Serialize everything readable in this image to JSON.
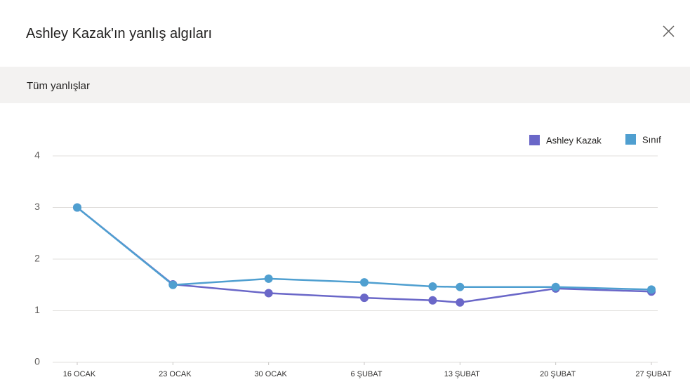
{
  "header": {
    "title": "Ashley Kazak'ın yanlış algıları"
  },
  "section": {
    "label": "Tüm yanlışlar"
  },
  "chart_data": {
    "type": "line",
    "x": [
      0,
      7,
      14,
      21,
      26,
      28,
      35,
      42
    ],
    "xlim": [
      0,
      42
    ],
    "xticks": [
      {
        "value": 0,
        "label": "16 OCAK"
      },
      {
        "value": 7,
        "label": "23 OCAK"
      },
      {
        "value": 14,
        "label": "30 OCAK"
      },
      {
        "value": 21,
        "label": "6 ŞUBAT"
      },
      {
        "value": 28,
        "label": "13 ŞUBAT"
      },
      {
        "value": 35,
        "label": "20 ŞUBAT"
      },
      {
        "value": 42,
        "label": "27 ŞUBAT"
      }
    ],
    "ylim": [
      0,
      4
    ],
    "yticks": [
      0,
      1,
      2,
      3,
      4
    ],
    "grid": true,
    "legend": "upper right",
    "series": [
      {
        "name": "Ashley Kazak",
        "color": "#6a67c8",
        "values": [
          3,
          1.51,
          1.34,
          1.25,
          1.2,
          1.16,
          1.43,
          1.37
        ]
      },
      {
        "name": "Sınıf",
        "color": "#4f9fd0",
        "values": [
          3,
          1.5,
          1.62,
          1.55,
          1.47,
          1.46,
          1.46,
          1.41
        ]
      }
    ]
  }
}
